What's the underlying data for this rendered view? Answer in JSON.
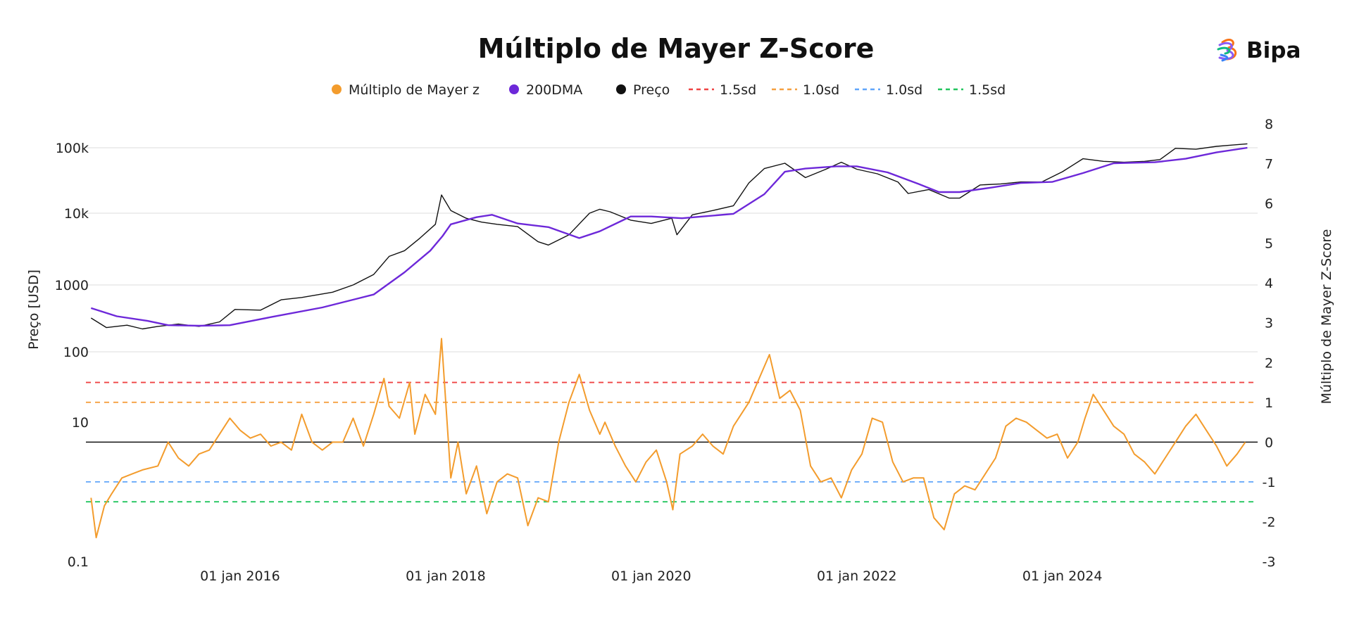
{
  "brand": {
    "name": "Bipa"
  },
  "chart_data": {
    "type": "line",
    "title": "Múltiplo de Mayer Z-Score",
    "legend": {
      "placement": "top",
      "items": [
        {
          "label": "Múltiplo de Mayer z",
          "marker": "dot",
          "color": "#f39c2d"
        },
        {
          "label": "200DMA",
          "marker": "dot",
          "color": "#6d28d9"
        },
        {
          "label": "Preço",
          "marker": "dot",
          "color": "#111111"
        },
        {
          "label": "1.5sd",
          "marker": "dash",
          "color": "#ef4444"
        },
        {
          "label": "1.0sd",
          "marker": "dash",
          "color": "#f5a040"
        },
        {
          "label": "1.0sd",
          "marker": "dash",
          "color": "#60a5fa"
        },
        {
          "label": "1.5sd",
          "marker": "dash",
          "color": "#22c55e"
        }
      ]
    },
    "x_axis": {
      "range": [
        2014.5,
        2025.9
      ],
      "ticks": [
        2016,
        2018,
        2020,
        2022,
        2024
      ],
      "tick_labels": [
        "01 jan 2016",
        "01 jan 2018",
        "01 jan 2020",
        "01 jan 2022",
        "01 jan 2024"
      ]
    },
    "y_left": {
      "label": "Preço [USD]",
      "scale": "log",
      "ticks": [
        0.1,
        10,
        100,
        1000,
        10000,
        100000
      ],
      "tick_labels": [
        "0.1",
        "10",
        "100",
        "1000",
        "10k",
        "100k"
      ]
    },
    "y_right": {
      "label": "Múltiplo de Mayer Z-Score",
      "range": [
        -3,
        8
      ],
      "ticks": [
        -3,
        -2,
        -1,
        0,
        1,
        2,
        3,
        4,
        5,
        6,
        7,
        8
      ],
      "tick_labels": [
        "-3",
        "-2",
        "-1",
        "0",
        "1",
        "2",
        "3",
        "4",
        "5",
        "6",
        "7",
        "8"
      ]
    },
    "grid": true,
    "reference_lines": [
      {
        "value": 1.5,
        "label": "1.5sd",
        "color": "#ef4444"
      },
      {
        "value": 1.0,
        "label": "1.0sd",
        "color": "#f5a040"
      },
      {
        "value": 0,
        "label": "0",
        "color": "#111111"
      },
      {
        "value": -1.0,
        "label": "1.0sd",
        "color": "#60a5fa"
      },
      {
        "value": -1.5,
        "label": "1.5sd",
        "color": "#22c55e"
      }
    ],
    "series": [
      {
        "name": "Preço",
        "axis": "left",
        "color": "#111111",
        "x": [
          2014.55,
          2014.7,
          2014.9,
          2015.05,
          2015.2,
          2015.4,
          2015.6,
          2015.8,
          2015.95,
          2016.2,
          2016.4,
          2016.6,
          2016.9,
          2017.1,
          2017.3,
          2017.45,
          2017.6,
          2017.75,
          2017.9,
          2017.96,
          2018.05,
          2018.2,
          2018.35,
          2018.5,
          2018.7,
          2018.9,
          2019.0,
          2019.2,
          2019.4,
          2019.5,
          2019.6,
          2019.8,
          2020.0,
          2020.2,
          2020.25,
          2020.4,
          2020.6,
          2020.8,
          2020.95,
          2021.1,
          2021.3,
          2021.5,
          2021.7,
          2021.85,
          2022.0,
          2022.2,
          2022.4,
          2022.5,
          2022.7,
          2022.9,
          2023.0,
          2023.2,
          2023.4,
          2023.6,
          2023.8,
          2024.0,
          2024.2,
          2024.4,
          2024.6,
          2024.8,
          2024.95,
          2025.1,
          2025.3,
          2025.5,
          2025.65,
          2025.8
        ],
        "y": [
          320,
          230,
          250,
          220,
          240,
          260,
          240,
          280,
          430,
          420,
          600,
          650,
          780,
          1000,
          1400,
          2500,
          3000,
          4500,
          7000,
          19000,
          11000,
          8500,
          7500,
          7000,
          6500,
          4000,
          3600,
          5000,
          10000,
          11500,
          10500,
          8000,
          7200,
          8500,
          5000,
          9500,
          11000,
          13000,
          29000,
          48000,
          58000,
          35000,
          47000,
          60000,
          47000,
          40000,
          30000,
          20000,
          23000,
          17000,
          17000,
          27000,
          28000,
          30000,
          30000,
          43000,
          68000,
          62000,
          60000,
          62000,
          66000,
          98000,
          95000,
          105000,
          110000,
          115000
        ]
      },
      {
        "name": "200DMA",
        "axis": "left",
        "color": "#6d28d9",
        "x": [
          2014.55,
          2014.8,
          2015.1,
          2015.3,
          2015.6,
          2015.9,
          2016.3,
          2016.8,
          2017.3,
          2017.6,
          2017.85,
          2017.97,
          2018.05,
          2018.3,
          2018.45,
          2018.7,
          2019.0,
          2019.3,
          2019.5,
          2019.8,
          2020.0,
          2020.3,
          2020.5,
          2020.8,
          2021.1,
          2021.3,
          2021.5,
          2021.8,
          2022.0,
          2022.3,
          2022.6,
          2022.8,
          2023.0,
          2023.3,
          2023.6,
          2023.9,
          2024.2,
          2024.5,
          2024.9,
          2025.2,
          2025.5,
          2025.8
        ],
        "y": [
          450,
          340,
          290,
          250,
          245,
          250,
          330,
          460,
          720,
          1500,
          3000,
          4800,
          7000,
          8800,
          9500,
          7200,
          6400,
          4500,
          5600,
          9000,
          9000,
          8500,
          9000,
          9800,
          19500,
          43000,
          48000,
          52000,
          52000,
          42000,
          28000,
          21000,
          21000,
          24500,
          29000,
          30000,
          41000,
          58000,
          60000,
          68000,
          85000,
          100000
        ]
      },
      {
        "name": "Múltiplo de Mayer z",
        "axis": "right",
        "color": "#f39c2d",
        "x": [
          2014.55,
          2014.6,
          2014.68,
          2014.75,
          2014.85,
          2014.95,
          2015.05,
          2015.2,
          2015.3,
          2015.4,
          2015.5,
          2015.6,
          2015.7,
          2015.8,
          2015.9,
          2016.0,
          2016.1,
          2016.2,
          2016.3,
          2016.4,
          2016.5,
          2016.6,
          2016.7,
          2016.8,
          2016.9,
          2017.0,
          2017.1,
          2017.2,
          2017.3,
          2017.4,
          2017.45,
          2017.55,
          2017.65,
          2017.7,
          2017.8,
          2017.9,
          2017.96,
          2018.05,
          2018.12,
          2018.2,
          2018.3,
          2018.4,
          2018.5,
          2018.6,
          2018.7,
          2018.8,
          2018.9,
          2019.0,
          2019.1,
          2019.2,
          2019.3,
          2019.4,
          2019.5,
          2019.55,
          2019.65,
          2019.75,
          2019.85,
          2019.95,
          2020.05,
          2020.15,
          2020.21,
          2020.28,
          2020.4,
          2020.5,
          2020.6,
          2020.7,
          2020.8,
          2020.95,
          2021.05,
          2021.15,
          2021.25,
          2021.35,
          2021.45,
          2021.55,
          2021.65,
          2021.75,
          2021.85,
          2021.95,
          2022.05,
          2022.15,
          2022.25,
          2022.35,
          2022.45,
          2022.55,
          2022.65,
          2022.75,
          2022.85,
          2022.95,
          2023.05,
          2023.15,
          2023.25,
          2023.35,
          2023.45,
          2023.55,
          2023.65,
          2023.75,
          2023.85,
          2023.95,
          2024.05,
          2024.15,
          2024.22,
          2024.3,
          2024.4,
          2024.5,
          2024.6,
          2024.7,
          2024.8,
          2024.9,
          2025.0,
          2025.1,
          2025.2,
          2025.3,
          2025.4,
          2025.5,
          2025.6,
          2025.7,
          2025.78
        ],
        "y": [
          -1.4,
          -2.4,
          -1.6,
          -1.3,
          -0.9,
          -0.8,
          -0.7,
          -0.6,
          0.0,
          -0.4,
          -0.6,
          -0.3,
          -0.2,
          0.2,
          0.6,
          0.3,
          0.1,
          0.2,
          -0.1,
          0.0,
          -0.2,
          0.7,
          0.0,
          -0.2,
          0.0,
          0.0,
          0.6,
          -0.1,
          0.7,
          1.6,
          0.9,
          0.6,
          1.5,
          0.2,
          1.2,
          0.7,
          2.6,
          -0.9,
          0.0,
          -1.3,
          -0.6,
          -1.8,
          -1.0,
          -0.8,
          -0.9,
          -2.1,
          -1.4,
          -1.5,
          0.0,
          1.0,
          1.7,
          0.8,
          0.2,
          0.5,
          -0.1,
          -0.6,
          -1.0,
          -0.5,
          -0.2,
          -1.0,
          -1.7,
          -0.3,
          -0.1,
          0.2,
          -0.1,
          -0.3,
          0.4,
          1.0,
          1.6,
          2.2,
          1.1,
          1.3,
          0.8,
          -0.6,
          -1.0,
          -0.9,
          -1.4,
          -0.7,
          -0.3,
          0.6,
          0.5,
          -0.5,
          -1.0,
          -0.9,
          -0.9,
          -1.9,
          -2.2,
          -1.3,
          -1.1,
          -1.2,
          -0.8,
          -0.4,
          0.4,
          0.6,
          0.5,
          0.3,
          0.1,
          0.2,
          -0.4,
          0.0,
          0.6,
          1.2,
          0.8,
          0.4,
          0.2,
          -0.3,
          -0.5,
          -0.8,
          -0.4,
          0.0,
          0.4,
          0.7,
          0.3,
          -0.1,
          -0.6,
          -0.3,
          0.0
        ]
      }
    ]
  }
}
